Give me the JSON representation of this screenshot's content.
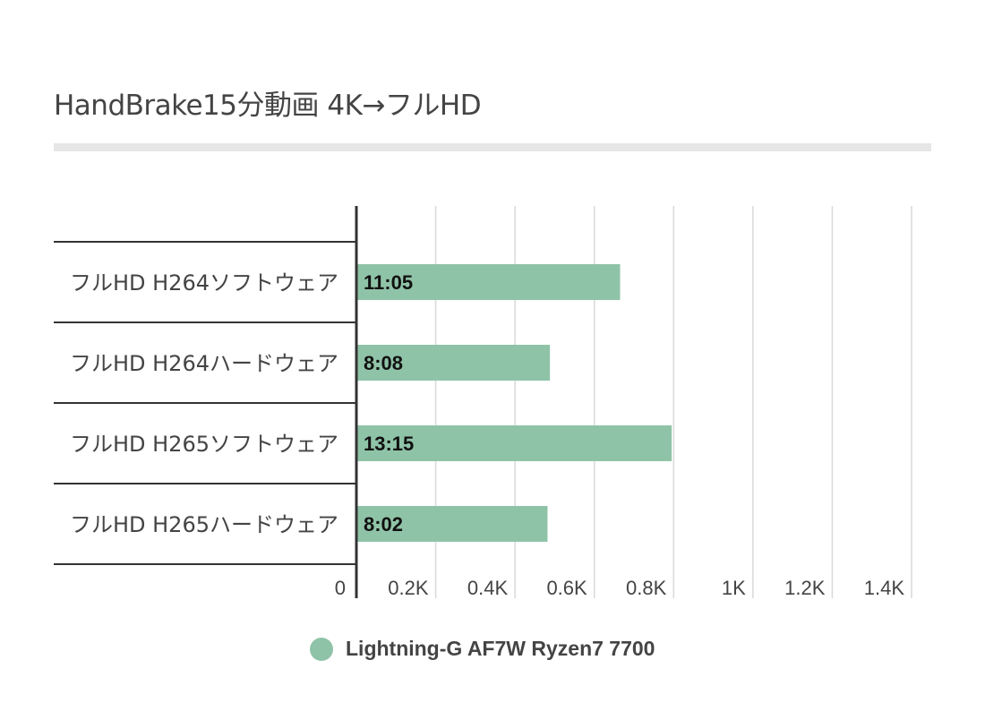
{
  "title": "HandBrake15分動画 4K→フルHD",
  "chart_data": {
    "type": "bar",
    "orientation": "horizontal",
    "title": "HandBrake15分動画 4K→フルHD",
    "categories": [
      "フルHD H264ソフトウェア",
      "フルHD H264ハードウェア",
      "フルHD H265ソフトウェア",
      "フルHD H265ハードウェア"
    ],
    "series": [
      {
        "name": "Lightning-G AF7W Ryzen7 7700",
        "values": [
          665,
          488,
          795,
          482
        ],
        "labels": [
          "11:05",
          "8:08",
          "13:15",
          "8:02"
        ],
        "color": "#8fc3a7"
      }
    ],
    "x_ticks": [
      0,
      200,
      400,
      600,
      800,
      1000,
      1200,
      1400
    ],
    "x_tick_labels": [
      "0",
      "0.2K",
      "0.4K",
      "0.6K",
      "0.8K",
      "1K",
      "1.2K",
      "1.4K"
    ],
    "xlim": [
      0,
      1400
    ],
    "grid": true,
    "legend_position": "bottom"
  }
}
